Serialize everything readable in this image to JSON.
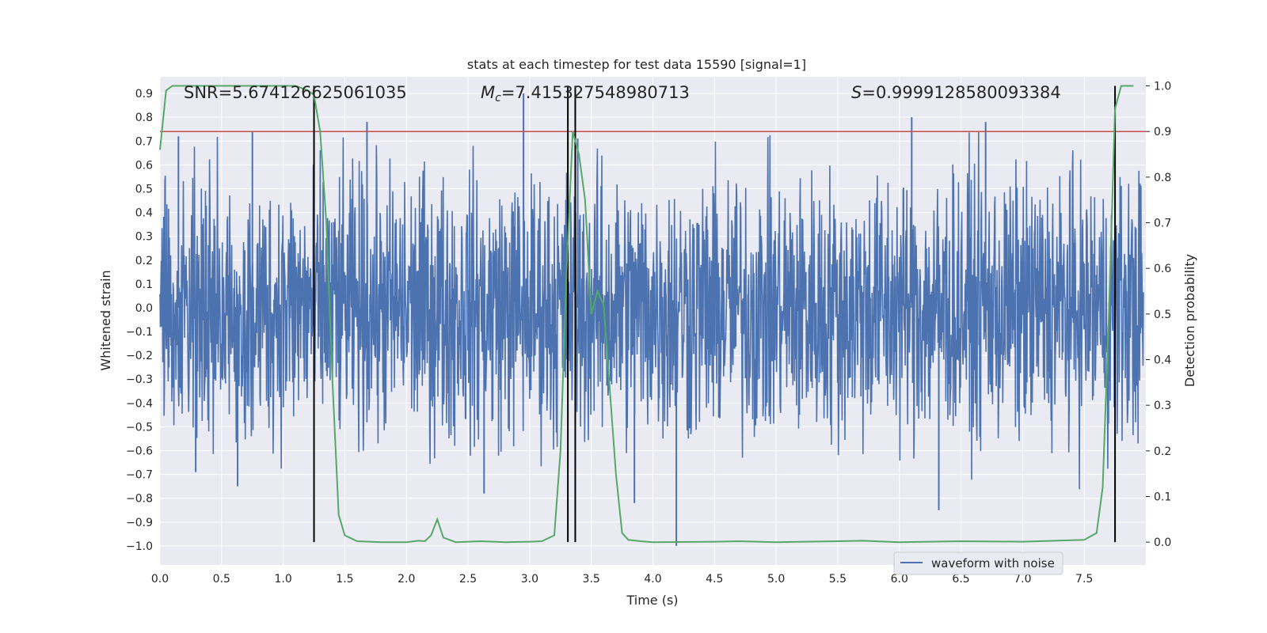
{
  "chart_data": {
    "type": "line",
    "title": "stats at each timestep for test data 15590 [signal=1]",
    "xlabel": "Time (s)",
    "ylabel": "Whitened strain",
    "ylabel_right": "Detection probability",
    "xlim": [
      0,
      8
    ],
    "ylim": [
      -1.08,
      0.97
    ],
    "ylim_right": [
      -0.05,
      1.02
    ],
    "x_ticks": [
      "0.0",
      "0.5",
      "1.0",
      "1.5",
      "2.0",
      "2.5",
      "3.0",
      "3.5",
      "4.0",
      "4.5",
      "5.0",
      "5.5",
      "6.0",
      "6.5",
      "7.0",
      "7.5"
    ],
    "y_ticks": [
      "0.9",
      "0.8",
      "0.7",
      "0.6",
      "0.5",
      "0.4",
      "0.3",
      "0.2",
      "0.1",
      "0.0",
      "−0.1",
      "−0.2",
      "−0.3",
      "−0.4",
      "−0.5",
      "−0.6",
      "−0.7",
      "−0.8",
      "−0.9",
      "−1.0"
    ],
    "y_right_ticks": [
      "1.0",
      "0.9",
      "0.8",
      "0.7",
      "0.6",
      "0.5",
      "0.4",
      "0.3",
      "0.2",
      "0.1",
      "0.0"
    ],
    "grid": true,
    "legend_position": "bottom-right",
    "annotations": {
      "snr": "SNR=5.674126625061035",
      "mc_symbol": "M",
      "mc_sub": "c",
      "mc_value": "=7.415327548980713",
      "s_symbol": "S",
      "s_value": "=0.9999128580093384"
    },
    "threshold": {
      "y_right": 0.9,
      "color": "#c44e52"
    },
    "vertical_lines_x": [
      1.25,
      3.31,
      3.37,
      7.75
    ],
    "series": [
      {
        "name": "waveform with noise",
        "axis": "left",
        "color": "#4c72b0",
        "description_only_seeded_noise": true,
        "noise_envelope": {
          "typical_low": -0.42,
          "typical_high": 0.42,
          "max": 0.9,
          "min": -1.0
        },
        "spikes": [
          [
            0.15,
            0.72
          ],
          [
            0.75,
            0.74
          ],
          [
            1.68,
            0.78
          ],
          [
            2.95,
            0.9
          ],
          [
            3.39,
            0.71
          ],
          [
            6.1,
            0.8
          ],
          [
            6.7,
            0.78
          ],
          [
            0.29,
            -0.69
          ],
          [
            0.63,
            -0.75
          ],
          [
            2.63,
            -0.78
          ],
          [
            3.85,
            -0.82
          ],
          [
            4.19,
            -1.0
          ],
          [
            6.32,
            -0.85
          ]
        ]
      },
      {
        "name": "",
        "axis": "right",
        "color": "#55a868",
        "points": [
          [
            0.0,
            0.86
          ],
          [
            0.05,
            0.99
          ],
          [
            0.1,
            1.0
          ],
          [
            0.2,
            1.0
          ],
          [
            0.4,
            1.0
          ],
          [
            0.6,
            1.0
          ],
          [
            0.8,
            1.0
          ],
          [
            1.0,
            1.0
          ],
          [
            1.1,
            1.0
          ],
          [
            1.2,
            0.99
          ],
          [
            1.25,
            0.98
          ],
          [
            1.3,
            0.9
          ],
          [
            1.35,
            0.7
          ],
          [
            1.4,
            0.35
          ],
          [
            1.45,
            0.06
          ],
          [
            1.5,
            0.015
          ],
          [
            1.6,
            0.002
          ],
          [
            1.8,
            0.0
          ],
          [
            2.0,
            0.0
          ],
          [
            2.1,
            0.003
          ],
          [
            2.15,
            0.002
          ],
          [
            2.2,
            0.015
          ],
          [
            2.25,
            0.05
          ],
          [
            2.3,
            0.01
          ],
          [
            2.4,
            0.0
          ],
          [
            2.6,
            0.002
          ],
          [
            2.8,
            0.0
          ],
          [
            3.0,
            0.001
          ],
          [
            3.1,
            0.002
          ],
          [
            3.2,
            0.015
          ],
          [
            3.25,
            0.2
          ],
          [
            3.3,
            0.6
          ],
          [
            3.35,
            0.9
          ],
          [
            3.4,
            0.85
          ],
          [
            3.45,
            0.75
          ],
          [
            3.5,
            0.5
          ],
          [
            3.55,
            0.55
          ],
          [
            3.6,
            0.52
          ],
          [
            3.7,
            0.15
          ],
          [
            3.75,
            0.02
          ],
          [
            3.8,
            0.005
          ],
          [
            3.9,
            0.002
          ],
          [
            4.0,
            0.0
          ],
          [
            4.5,
            0.001
          ],
          [
            4.7,
            0.002
          ],
          [
            5.0,
            0.0
          ],
          [
            5.5,
            0.002
          ],
          [
            5.7,
            0.003
          ],
          [
            6.0,
            0.0
          ],
          [
            6.5,
            0.002
          ],
          [
            7.0,
            0.001
          ],
          [
            7.5,
            0.005
          ],
          [
            7.6,
            0.02
          ],
          [
            7.65,
            0.12
          ],
          [
            7.7,
            0.5
          ],
          [
            7.75,
            0.95
          ],
          [
            7.8,
            1.0
          ],
          [
            7.9,
            1.0
          ]
        ]
      }
    ]
  }
}
